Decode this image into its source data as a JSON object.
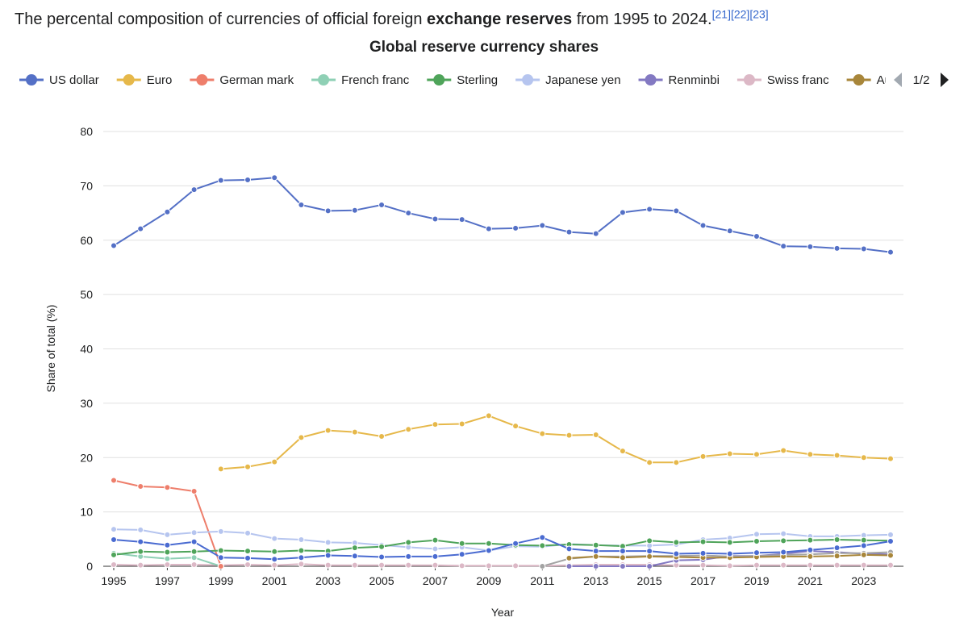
{
  "caption": {
    "text_before": "The percental composition of currencies of official foreign ",
    "text_bold": "exchange reserves",
    "text_after": " from 1995 to 2024.",
    "refs": [
      "[21]",
      "[22]",
      "[23]"
    ]
  },
  "legend": {
    "page_indicator": "1/2",
    "prev_icon": "triangle-left-icon",
    "next_icon": "triangle-right-icon"
  },
  "chart_data": {
    "type": "line",
    "title": "Global reserve currency shares",
    "xlabel": "Year",
    "ylabel": "Share of total (%)",
    "ylim": [
      0,
      80
    ],
    "yticks": [
      0,
      10,
      20,
      30,
      40,
      50,
      60,
      70,
      80
    ],
    "xlim": [
      1995,
      2024
    ],
    "xticks": [
      1995,
      1997,
      1999,
      2001,
      2003,
      2005,
      2007,
      2009,
      2011,
      2013,
      2015,
      2017,
      2019,
      2021,
      2023
    ],
    "grid": "horizontal",
    "legend_position": "top",
    "x": [
      1995,
      1996,
      1997,
      1998,
      1999,
      2000,
      2001,
      2002,
      2003,
      2004,
      2005,
      2006,
      2007,
      2008,
      2009,
      2010,
      2011,
      2012,
      2013,
      2014,
      2015,
      2016,
      2017,
      2018,
      2019,
      2020,
      2021,
      2022,
      2023,
      2024
    ],
    "series": [
      {
        "name": "US dollar",
        "color": "#5470c6",
        "legend": true,
        "values": [
          59.0,
          62.1,
          65.2,
          69.3,
          71.0,
          71.1,
          71.5,
          66.5,
          65.4,
          65.5,
          66.5,
          65.0,
          63.9,
          63.8,
          62.1,
          62.2,
          62.7,
          61.5,
          61.2,
          65.1,
          65.7,
          65.4,
          62.7,
          61.7,
          60.7,
          58.9,
          58.8,
          58.5,
          58.4,
          57.8
        ]
      },
      {
        "name": "Euro",
        "color": "#e6b84a",
        "legend": true,
        "values": [
          null,
          null,
          null,
          null,
          17.9,
          18.3,
          19.2,
          23.7,
          25.0,
          24.7,
          23.9,
          25.2,
          26.1,
          26.2,
          27.7,
          25.8,
          24.4,
          24.1,
          24.2,
          21.2,
          19.1,
          19.1,
          20.2,
          20.7,
          20.6,
          21.3,
          20.6,
          20.4,
          20.0,
          19.8
        ]
      },
      {
        "name": "German mark",
        "color": "#ee7e6b",
        "legend": true,
        "values": [
          15.8,
          14.7,
          14.5,
          13.8,
          0,
          null,
          null,
          null,
          null,
          null,
          null,
          null,
          null,
          null,
          null,
          null,
          null,
          null,
          null,
          null,
          null,
          null,
          null,
          null,
          null,
          null,
          null,
          null,
          null,
          null
        ]
      },
      {
        "name": "French franc",
        "color": "#8fd0b5",
        "legend": true,
        "values": [
          2.4,
          1.8,
          1.4,
          1.6,
          0,
          null,
          null,
          null,
          null,
          null,
          null,
          null,
          null,
          null,
          null,
          null,
          null,
          null,
          null,
          null,
          null,
          null,
          null,
          null,
          null,
          null,
          null,
          null,
          null,
          null
        ]
      },
      {
        "name": "Sterling",
        "color": "#4fa45a",
        "legend": true,
        "values": [
          2.1,
          2.7,
          2.6,
          2.7,
          2.9,
          2.8,
          2.7,
          2.9,
          2.8,
          3.4,
          3.6,
          4.4,
          4.8,
          4.2,
          4.2,
          3.9,
          3.8,
          4.0,
          3.9,
          3.7,
          4.7,
          4.4,
          4.5,
          4.4,
          4.6,
          4.7,
          4.8,
          4.9,
          4.8,
          4.7
        ]
      },
      {
        "name": "Japanese yen",
        "color": "#b6c5ef",
        "legend": true,
        "values": [
          6.8,
          6.7,
          5.8,
          6.2,
          6.4,
          6.1,
          5.1,
          4.9,
          4.4,
          4.3,
          3.9,
          3.5,
          3.2,
          3.5,
          2.9,
          3.7,
          3.6,
          4.1,
          3.9,
          3.8,
          3.8,
          4.0,
          4.9,
          5.2,
          5.9,
          6.0,
          5.5,
          5.5,
          5.7,
          5.8
        ]
      },
      {
        "name": "Renminbi",
        "color": "#8379c2",
        "legend": true,
        "values": [
          null,
          null,
          null,
          null,
          null,
          null,
          null,
          null,
          null,
          null,
          null,
          null,
          null,
          null,
          null,
          null,
          null,
          0,
          0,
          0,
          0,
          1.1,
          1.2,
          1.9,
          1.9,
          2.3,
          2.8,
          2.6,
          2.3,
          2.2
        ]
      },
      {
        "name": "Swiss franc",
        "color": "#dcb8c6",
        "legend": true,
        "values": [
          0.3,
          0.2,
          0.3,
          0.3,
          0.2,
          0.3,
          0.2,
          0.4,
          0.2,
          0.2,
          0.2,
          0.2,
          0.2,
          0.1,
          0.1,
          0.1,
          0.1,
          0.2,
          0.3,
          0.3,
          0.3,
          0.2,
          0.2,
          0.1,
          0.2,
          0.2,
          0.2,
          0.2,
          0.2,
          0.2
        ]
      },
      {
        "name": "Australian dollar",
        "color": "#a8863a",
        "legend": true,
        "values": [
          null,
          null,
          null,
          null,
          null,
          null,
          null,
          null,
          null,
          null,
          null,
          null,
          null,
          null,
          null,
          null,
          null,
          1.5,
          1.8,
          1.6,
          1.8,
          1.7,
          1.6,
          1.6,
          1.7,
          1.8,
          1.8,
          1.9,
          2.1,
          2.0
        ]
      },
      {
        "name": "",
        "color": "#a3a3a3",
        "legend": false,
        "values": [
          null,
          null,
          null,
          null,
          null,
          null,
          null,
          null,
          null,
          null,
          null,
          null,
          null,
          null,
          null,
          null,
          0,
          1.4,
          1.8,
          1.8,
          1.9,
          1.9,
          2.0,
          1.8,
          1.9,
          2.1,
          2.2,
          2.4,
          2.4,
          2.6
        ]
      },
      {
        "name": "",
        "color": "#4a6bd1",
        "legend": false,
        "values": [
          4.9,
          4.5,
          3.9,
          4.5,
          1.6,
          1.5,
          1.3,
          1.6,
          2.0,
          1.9,
          1.7,
          1.8,
          1.8,
          2.2,
          2.9,
          4.2,
          5.3,
          3.2,
          2.8,
          2.8,
          2.8,
          2.3,
          2.4,
          2.3,
          2.5,
          2.6,
          3.0,
          3.4,
          3.8,
          4.6
        ]
      }
    ]
  }
}
